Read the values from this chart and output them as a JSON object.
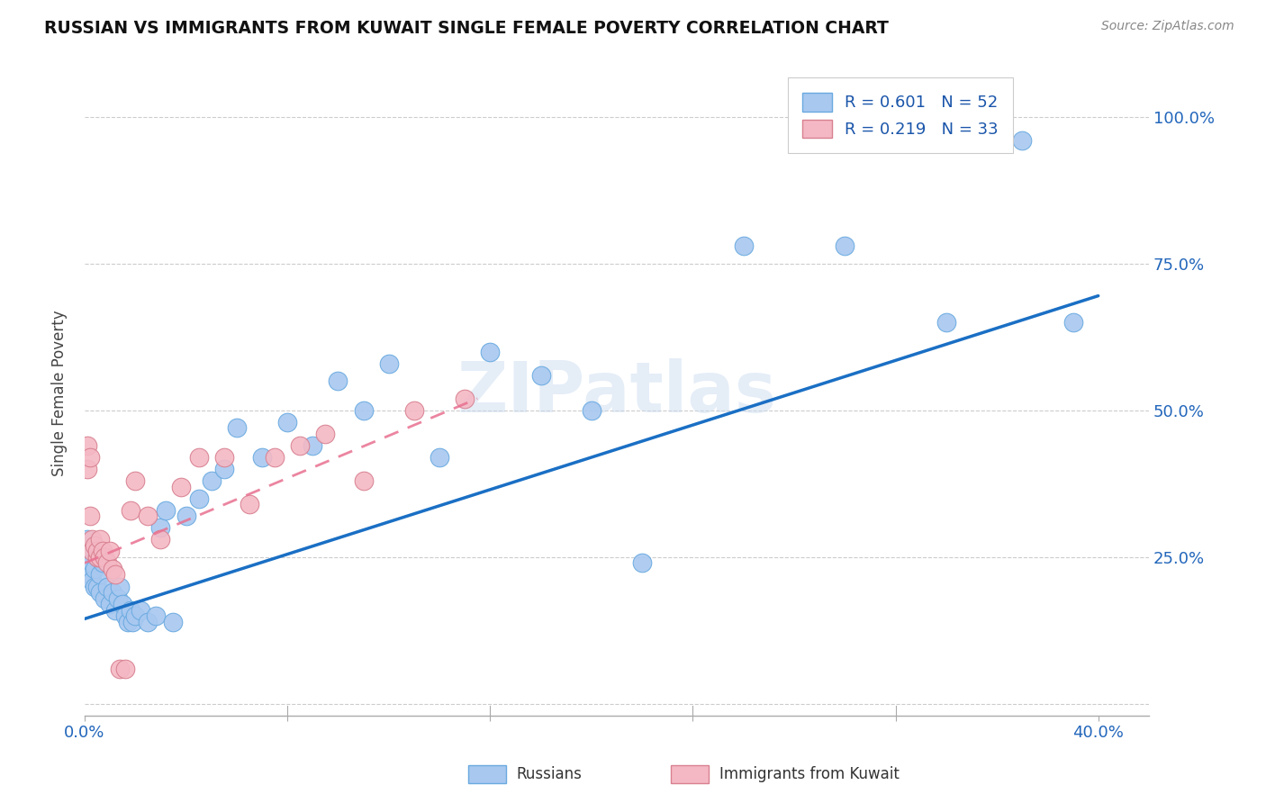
{
  "title": "RUSSIAN VS IMMIGRANTS FROM KUWAIT SINGLE FEMALE POVERTY CORRELATION CHART",
  "source": "Source: ZipAtlas.com",
  "ylabel": "Single Female Poverty",
  "ytick_vals": [
    0.0,
    0.25,
    0.5,
    0.75,
    1.0
  ],
  "ytick_labels": [
    "",
    "25.0%",
    "50.0%",
    "75.0%",
    "100.0%"
  ],
  "xtick_vals": [
    0.0,
    0.08,
    0.16,
    0.24,
    0.32,
    0.4
  ],
  "xtick_labels_show": [
    "0.0%",
    "",
    "",
    "",
    "",
    "40.0%"
  ],
  "xlim": [
    0.0,
    0.42
  ],
  "ylim": [
    -0.02,
    1.08
  ],
  "legend_r1": "R = 0.601",
  "legend_n1": "N = 52",
  "legend_r2": "R = 0.219",
  "legend_n2": "N = 33",
  "legend_label1": "Russians",
  "legend_label2": "Immigrants from Kuwait",
  "color_russian": "#a8c8f0",
  "color_kuwait": "#f4b8c4",
  "color_russian_line": "#1a6fc4",
  "color_kuwait_line": "#e87090",
  "watermark": "ZIPatlas",
  "russians_x": [
    0.001,
    0.002,
    0.002,
    0.003,
    0.003,
    0.004,
    0.004,
    0.005,
    0.005,
    0.006,
    0.006,
    0.007,
    0.008,
    0.009,
    0.01,
    0.011,
    0.012,
    0.013,
    0.014,
    0.015,
    0.016,
    0.017,
    0.018,
    0.019,
    0.02,
    0.022,
    0.025,
    0.028,
    0.03,
    0.032,
    0.035,
    0.04,
    0.045,
    0.05,
    0.055,
    0.06,
    0.07,
    0.08,
    0.09,
    0.1,
    0.11,
    0.12,
    0.14,
    0.16,
    0.18,
    0.2,
    0.22,
    0.26,
    0.3,
    0.34,
    0.37,
    0.39
  ],
  "russians_y": [
    0.28,
    0.22,
    0.26,
    0.21,
    0.24,
    0.2,
    0.23,
    0.25,
    0.2,
    0.22,
    0.19,
    0.24,
    0.18,
    0.2,
    0.17,
    0.19,
    0.16,
    0.18,
    0.2,
    0.17,
    0.15,
    0.14,
    0.16,
    0.14,
    0.15,
    0.16,
    0.14,
    0.15,
    0.3,
    0.33,
    0.14,
    0.32,
    0.35,
    0.38,
    0.4,
    0.47,
    0.42,
    0.48,
    0.44,
    0.55,
    0.5,
    0.58,
    0.42,
    0.6,
    0.56,
    0.5,
    0.24,
    0.78,
    0.78,
    0.65,
    0.96,
    0.65
  ],
  "kuwait_x": [
    0.001,
    0.001,
    0.002,
    0.002,
    0.003,
    0.003,
    0.004,
    0.005,
    0.005,
    0.006,
    0.006,
    0.007,
    0.008,
    0.009,
    0.01,
    0.011,
    0.012,
    0.014,
    0.016,
    0.018,
    0.02,
    0.025,
    0.03,
    0.038,
    0.045,
    0.055,
    0.065,
    0.075,
    0.085,
    0.095,
    0.11,
    0.13,
    0.15
  ],
  "kuwait_y": [
    0.44,
    0.4,
    0.42,
    0.32,
    0.28,
    0.26,
    0.27,
    0.25,
    0.26,
    0.25,
    0.28,
    0.26,
    0.25,
    0.24,
    0.26,
    0.23,
    0.22,
    0.06,
    0.06,
    0.33,
    0.38,
    0.32,
    0.28,
    0.37,
    0.42,
    0.42,
    0.34,
    0.42,
    0.44,
    0.46,
    0.38,
    0.5,
    0.52
  ],
  "russian_line_x": [
    0.0,
    0.4
  ],
  "russian_line_y": [
    0.145,
    0.695
  ],
  "kuwait_line_x": [
    0.0,
    0.155
  ],
  "kuwait_line_y": [
    0.24,
    0.52
  ]
}
